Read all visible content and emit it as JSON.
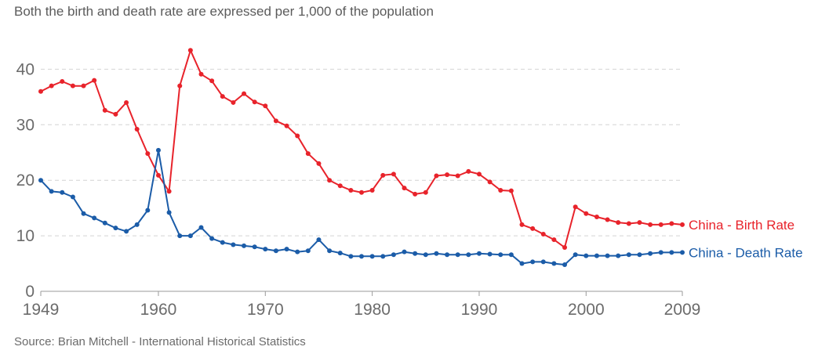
{
  "subtitle": "Both the birth and death rate are expressed per 1,000 of the population",
  "source": "Source: Brian Mitchell - International Historical Statistics",
  "chart_data": {
    "type": "line",
    "title": "",
    "xlabel": "",
    "ylabel": "",
    "xlim": [
      1949,
      2009
    ],
    "ylim": [
      0,
      45
    ],
    "x_ticks": [
      1949,
      1960,
      1970,
      1980,
      1990,
      2000,
      2009
    ],
    "y_ticks": [
      0,
      10,
      20,
      30,
      40
    ],
    "grid": "horizontal dashed",
    "series": [
      {
        "name": "China - Birth Rate",
        "color": "#e8232b",
        "x": [
          1949,
          1950,
          1951,
          1952,
          1953,
          1954,
          1955,
          1956,
          1957,
          1958,
          1959,
          1960,
          1961,
          1962,
          1963,
          1964,
          1965,
          1966,
          1967,
          1968,
          1969,
          1970,
          1971,
          1972,
          1973,
          1974,
          1975,
          1976,
          1977,
          1978,
          1979,
          1980,
          1981,
          1982,
          1983,
          1984,
          1985,
          1986,
          1987,
          1988,
          1989,
          1990,
          1991,
          1992,
          1993,
          1994,
          1995,
          1996,
          1997,
          1998,
          1999,
          2000,
          2001,
          2002,
          2003,
          2004,
          2005,
          2006,
          2007,
          2008,
          2009
        ],
        "values": [
          36.0,
          37.0,
          37.8,
          37.0,
          37.0,
          38.0,
          32.6,
          31.9,
          34.0,
          29.2,
          24.8,
          20.9,
          18.0,
          37.0,
          43.4,
          39.1,
          37.9,
          35.1,
          34.0,
          35.6,
          34.1,
          33.4,
          30.7,
          29.8,
          28.0,
          24.8,
          23.0,
          20.0,
          19.0,
          18.2,
          17.8,
          18.2,
          20.9,
          21.1,
          18.6,
          17.5,
          17.8,
          20.8,
          21.0,
          20.8,
          21.6,
          21.1,
          19.7,
          18.2,
          18.1,
          12.0,
          11.3,
          10.3,
          9.3,
          7.9,
          15.2,
          14.0,
          13.4,
          12.9,
          12.4,
          12.2,
          12.4,
          12.0,
          12.0,
          12.2,
          12.0
        ]
      },
      {
        "name": "China - Death Rate",
        "color": "#1b5ca8",
        "x": [
          1949,
          1950,
          1951,
          1952,
          1953,
          1954,
          1955,
          1956,
          1957,
          1958,
          1959,
          1960,
          1961,
          1962,
          1963,
          1964,
          1965,
          1966,
          1967,
          1968,
          1969,
          1970,
          1971,
          1972,
          1973,
          1974,
          1975,
          1976,
          1977,
          1978,
          1979,
          1980,
          1981,
          1982,
          1983,
          1984,
          1985,
          1986,
          1987,
          1988,
          1989,
          1990,
          1991,
          1992,
          1993,
          1994,
          1995,
          1996,
          1997,
          1998,
          1999,
          2000,
          2001,
          2002,
          2003,
          2004,
          2005,
          2006,
          2007,
          2008,
          2009
        ],
        "values": [
          20.0,
          18.0,
          17.8,
          17.0,
          14.0,
          13.2,
          12.3,
          11.4,
          10.8,
          12.0,
          14.6,
          25.4,
          14.2,
          10.0,
          10.0,
          11.5,
          9.5,
          8.8,
          8.4,
          8.2,
          8.0,
          7.6,
          7.3,
          7.6,
          7.1,
          7.3,
          9.3,
          7.3,
          6.9,
          6.3,
          6.3,
          6.3,
          6.3,
          6.6,
          7.1,
          6.8,
          6.6,
          6.8,
          6.6,
          6.6,
          6.6,
          6.8,
          6.7,
          6.6,
          6.6,
          5.0,
          5.3,
          5.3,
          5.0,
          4.8,
          6.6,
          6.4,
          6.4,
          6.4,
          6.4,
          6.6,
          6.6,
          6.8,
          7.0,
          7.0,
          7.0
        ]
      }
    ]
  }
}
